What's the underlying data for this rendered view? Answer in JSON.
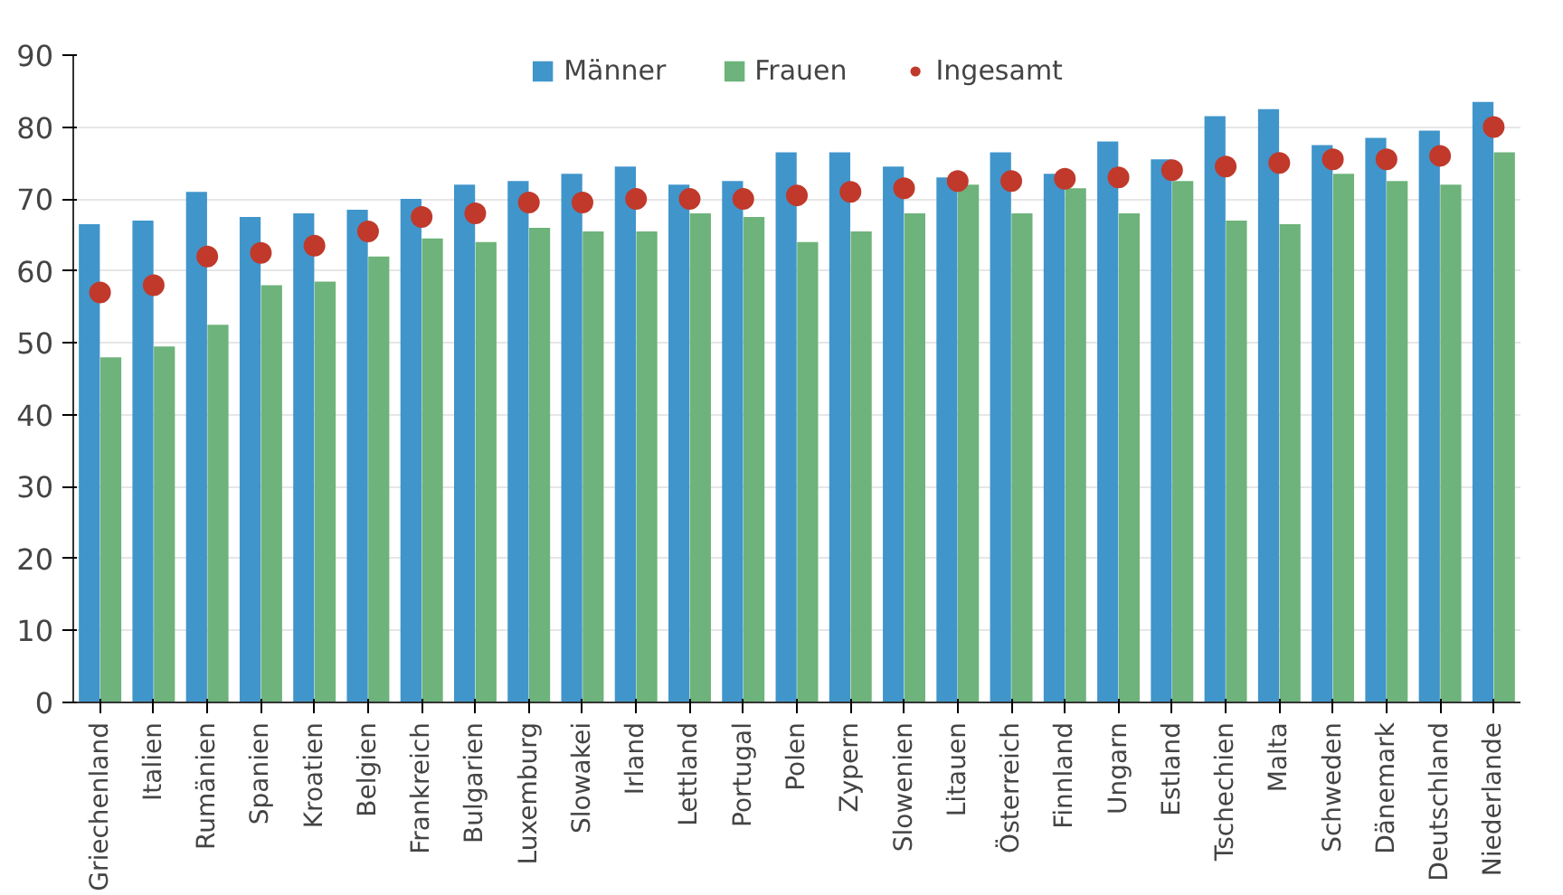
{
  "chart_data": {
    "type": "bar",
    "categories": [
      "Griechenland",
      "Italien",
      "Rumänien",
      "Spanien",
      "Kroatien",
      "Belgien",
      "Frankreich",
      "Bulgarien",
      "Luxemburg",
      "Slowakei",
      "Irland",
      "Lettland",
      "Portugal",
      "Polen",
      "Zypern",
      "Slowenien",
      "Litauen",
      "Österreich",
      "Finnland",
      "Ungarn",
      "Estland",
      "Tschechien",
      "Malta",
      "Schweden",
      "Dänemark",
      "Deutschland",
      "Niederlande"
    ],
    "series": [
      {
        "name": "Männer",
        "color": "#4095cb",
        "values": [
          66.5,
          67,
          71,
          67.5,
          68,
          68.5,
          70,
          72,
          72.5,
          73.5,
          74.5,
          72,
          72.5,
          76.5,
          76.5,
          74.5,
          73,
          76.5,
          73.5,
          78,
          75.5,
          81.5,
          82.5,
          77.5,
          78.5,
          79.5,
          83.5
        ]
      },
      {
        "name": "Frauen",
        "color": "#6db37b",
        "values": [
          48,
          49.5,
          52.5,
          58,
          58.5,
          62,
          64.5,
          64,
          66,
          65.5,
          65.5,
          68,
          67.5,
          64,
          65.5,
          68,
          72,
          68,
          71.5,
          68,
          72.5,
          67,
          66.5,
          73.5,
          72.5,
          72,
          76.5
        ]
      },
      {
        "name": "Ingesamt",
        "type": "scatter",
        "color": "#c0392b",
        "marker": "circle",
        "values": [
          57,
          58,
          62,
          62.5,
          63.5,
          65.5,
          67.5,
          68,
          69.5,
          69.5,
          70,
          70,
          70,
          70.5,
          71,
          71.5,
          72.5,
          72.5,
          72.8,
          73,
          74,
          74.5,
          75,
          75.5,
          75.5,
          76,
          80
        ]
      }
    ],
    "ylim": [
      0,
      90
    ],
    "yticks": [
      0,
      10,
      20,
      30,
      40,
      50,
      60,
      70,
      80,
      90
    ],
    "grid": "y",
    "legend": "top"
  }
}
